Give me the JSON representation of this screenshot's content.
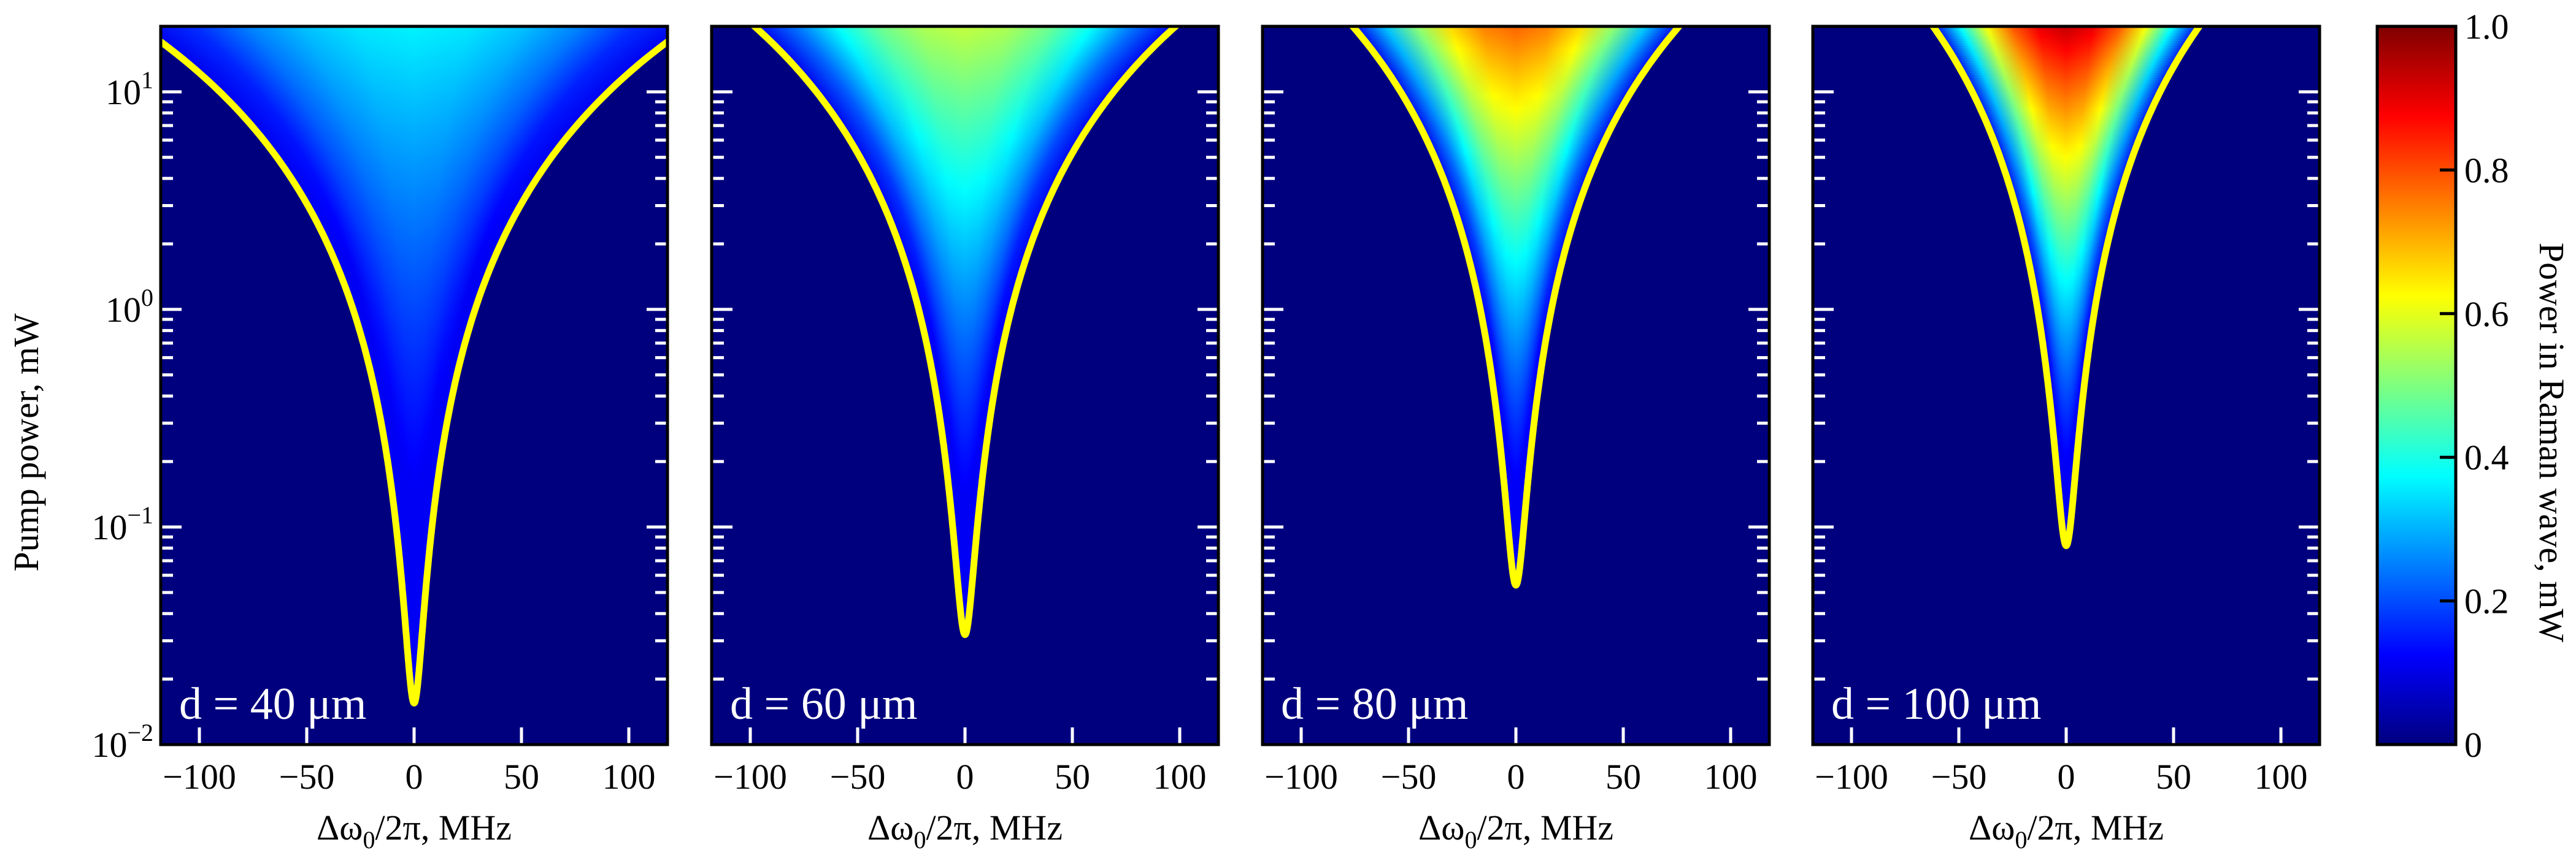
{
  "chart_data": {
    "type": "heatmap",
    "y_axis": {
      "label": "Pump power, mW",
      "scale": "log",
      "ylim": [
        0.01,
        20
      ],
      "ticks": [
        {
          "value": 10,
          "base": "10",
          "exp": "1"
        },
        {
          "value": 1,
          "base": "10",
          "exp": "0"
        },
        {
          "value": 0.1,
          "base": "10",
          "exp": "−1"
        },
        {
          "value": 0.01,
          "base": "10",
          "exp": "−2"
        }
      ]
    },
    "x_axis": {
      "label_main": "Δω",
      "label_sub": "0",
      "label_rest": "/2π, MHz",
      "xlim": [
        -118,
        118
      ],
      "ticks": [
        {
          "value": -100,
          "label": "−100"
        },
        {
          "value": -50,
          "label": "−50"
        },
        {
          "value": 0,
          "label": "0"
        },
        {
          "value": 50,
          "label": "50"
        },
        {
          "value": 100,
          "label": "100"
        }
      ]
    },
    "colorbar": {
      "label": "Power in Raman wave, mW",
      "range": [
        0,
        1.0
      ],
      "ticks": [
        {
          "value": 0,
          "label": "0"
        },
        {
          "value": 0.2,
          "label": "0.2"
        },
        {
          "value": 0.4,
          "label": "0.4"
        },
        {
          "value": 0.6,
          "label": "0.6"
        },
        {
          "value": 0.8,
          "label": "0.8"
        },
        {
          "value": 1.0,
          "label": "1.0"
        }
      ],
      "colormap": "jet",
      "colors": [
        "#00007f",
        "#0000ff",
        "#007fff",
        "#00ffff",
        "#7fff7f",
        "#ffff00",
        "#ff7f00",
        "#ff0000",
        "#7f0000"
      ],
      "curve_color": "#ffff00",
      "background_color": "#00007f"
    },
    "panels": [
      {
        "label": "d = 40 μm",
        "threshold_min_power": 0.0155,
        "tuning_half_width_at_20mW": 128,
        "max_raman_power": 0.33
      },
      {
        "label": "d = 60 μm",
        "threshold_min_power": 0.032,
        "tuning_half_width_at_20mW": 98,
        "max_raman_power": 0.55
      },
      {
        "label": "d = 80 μm",
        "threshold_min_power": 0.054,
        "tuning_half_width_at_20mW": 76,
        "max_raman_power": 0.78
      },
      {
        "label": "d = 100 μm",
        "threshold_min_power": 0.082,
        "tuning_half_width_at_20mW": 62,
        "max_raman_power": 0.95
      }
    ]
  }
}
